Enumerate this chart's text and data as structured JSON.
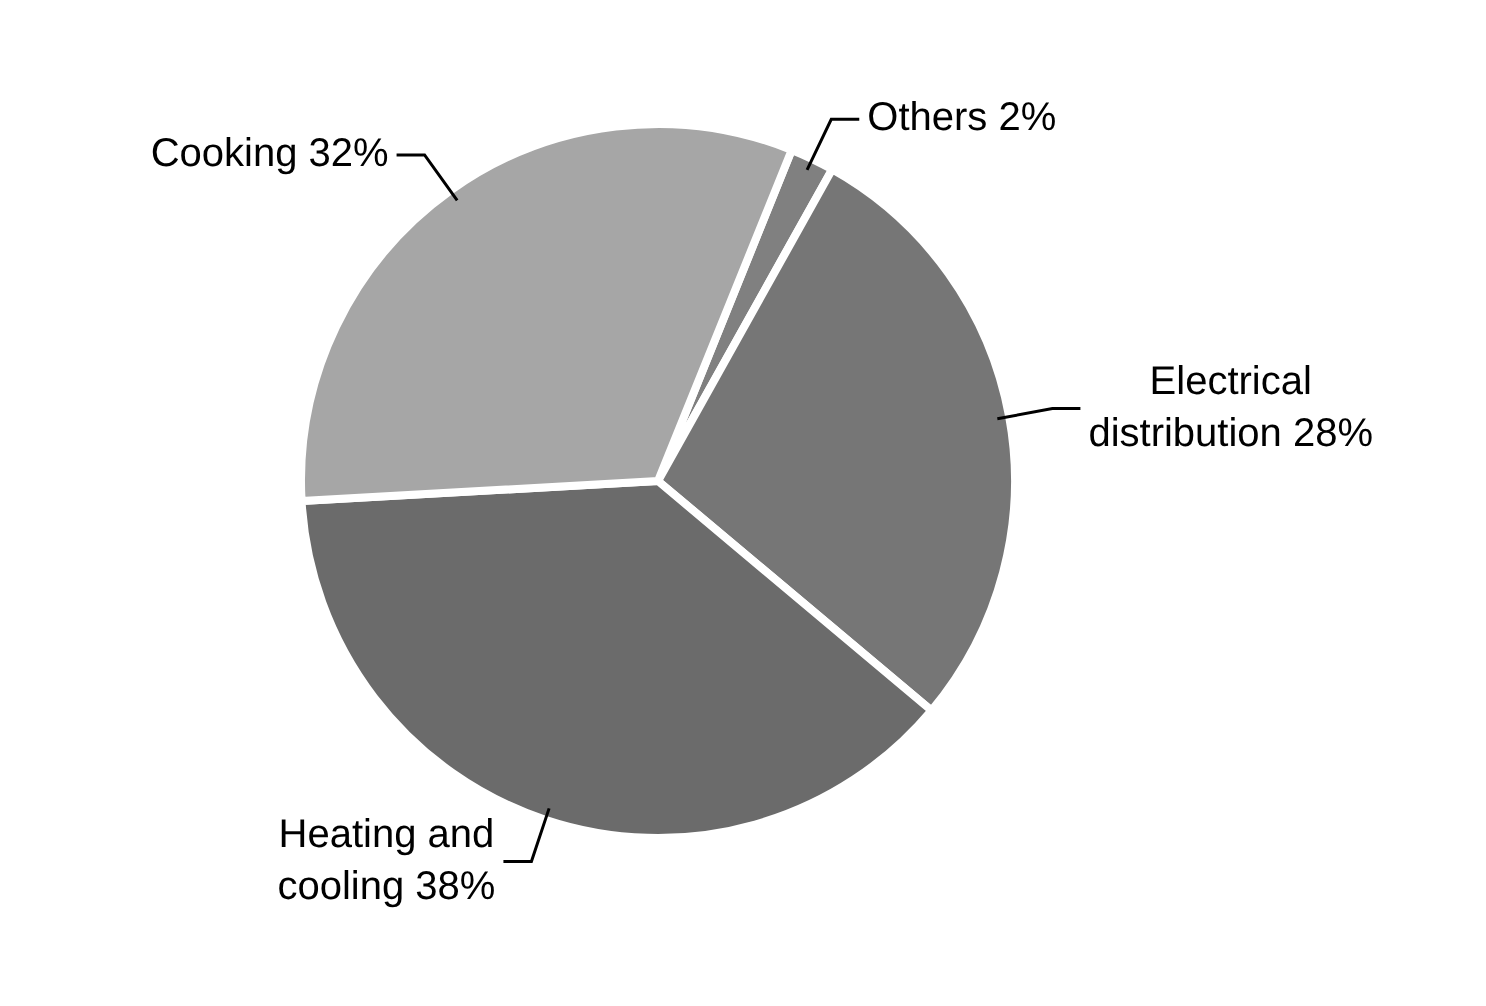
{
  "chart_data": {
    "type": "pie",
    "categories": [
      "Others",
      "Electrical distribution",
      "Heating and cooling",
      "Cooking"
    ],
    "values": [
      2,
      28,
      38,
      32
    ],
    "colors": [
      "#808080",
      "#767676",
      "#6b6b6b",
      "#a6a6a6"
    ],
    "value_labels": [
      "2%",
      "28%",
      "38%",
      "32%"
    ],
    "legend": false
  }
}
